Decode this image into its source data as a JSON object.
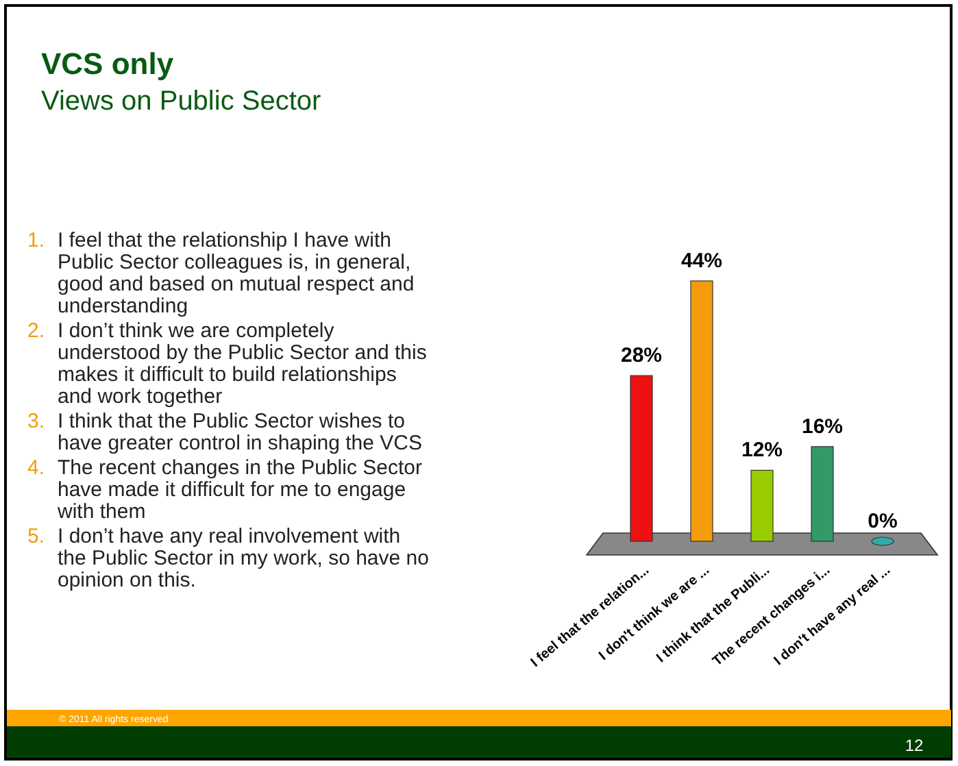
{
  "chart_data": {
    "type": "bar",
    "title": "VCS only",
    "subtitle": "Views on Public Sector",
    "categories": [
      "I feel that the relation...",
      "I don't think we are ...",
      "I think that the Publi...",
      "The recent changes i...",
      "I don't have any real ..."
    ],
    "values": [
      28,
      44,
      12,
      16,
      0
    ],
    "colors": [
      "#ee1111",
      "#f39c0c",
      "#99cc00",
      "#339966",
      "#33aaaa"
    ],
    "value_labels": [
      "28%",
      "44%",
      "12%",
      "16%",
      "0%"
    ],
    "annotations": [
      "1. I feel that the relationship I have with Public Sector colleagues is, in general, good and based on mutual respect and understanding",
      "2. I don’t think we are completely understood by the Public Sector and this makes it difficult to build relationships and work together",
      "3. I think that the Public Sector wishes to have greater control in shaping the VCS",
      "4. The recent changes in the Public Sector have made it difficult for me to engage with them",
      "5. I don’t have any real involvement with the Public Sector in my work, so have no opinion on this.",
      "© 2011 All rights reserved",
      "12"
    ]
  }
}
